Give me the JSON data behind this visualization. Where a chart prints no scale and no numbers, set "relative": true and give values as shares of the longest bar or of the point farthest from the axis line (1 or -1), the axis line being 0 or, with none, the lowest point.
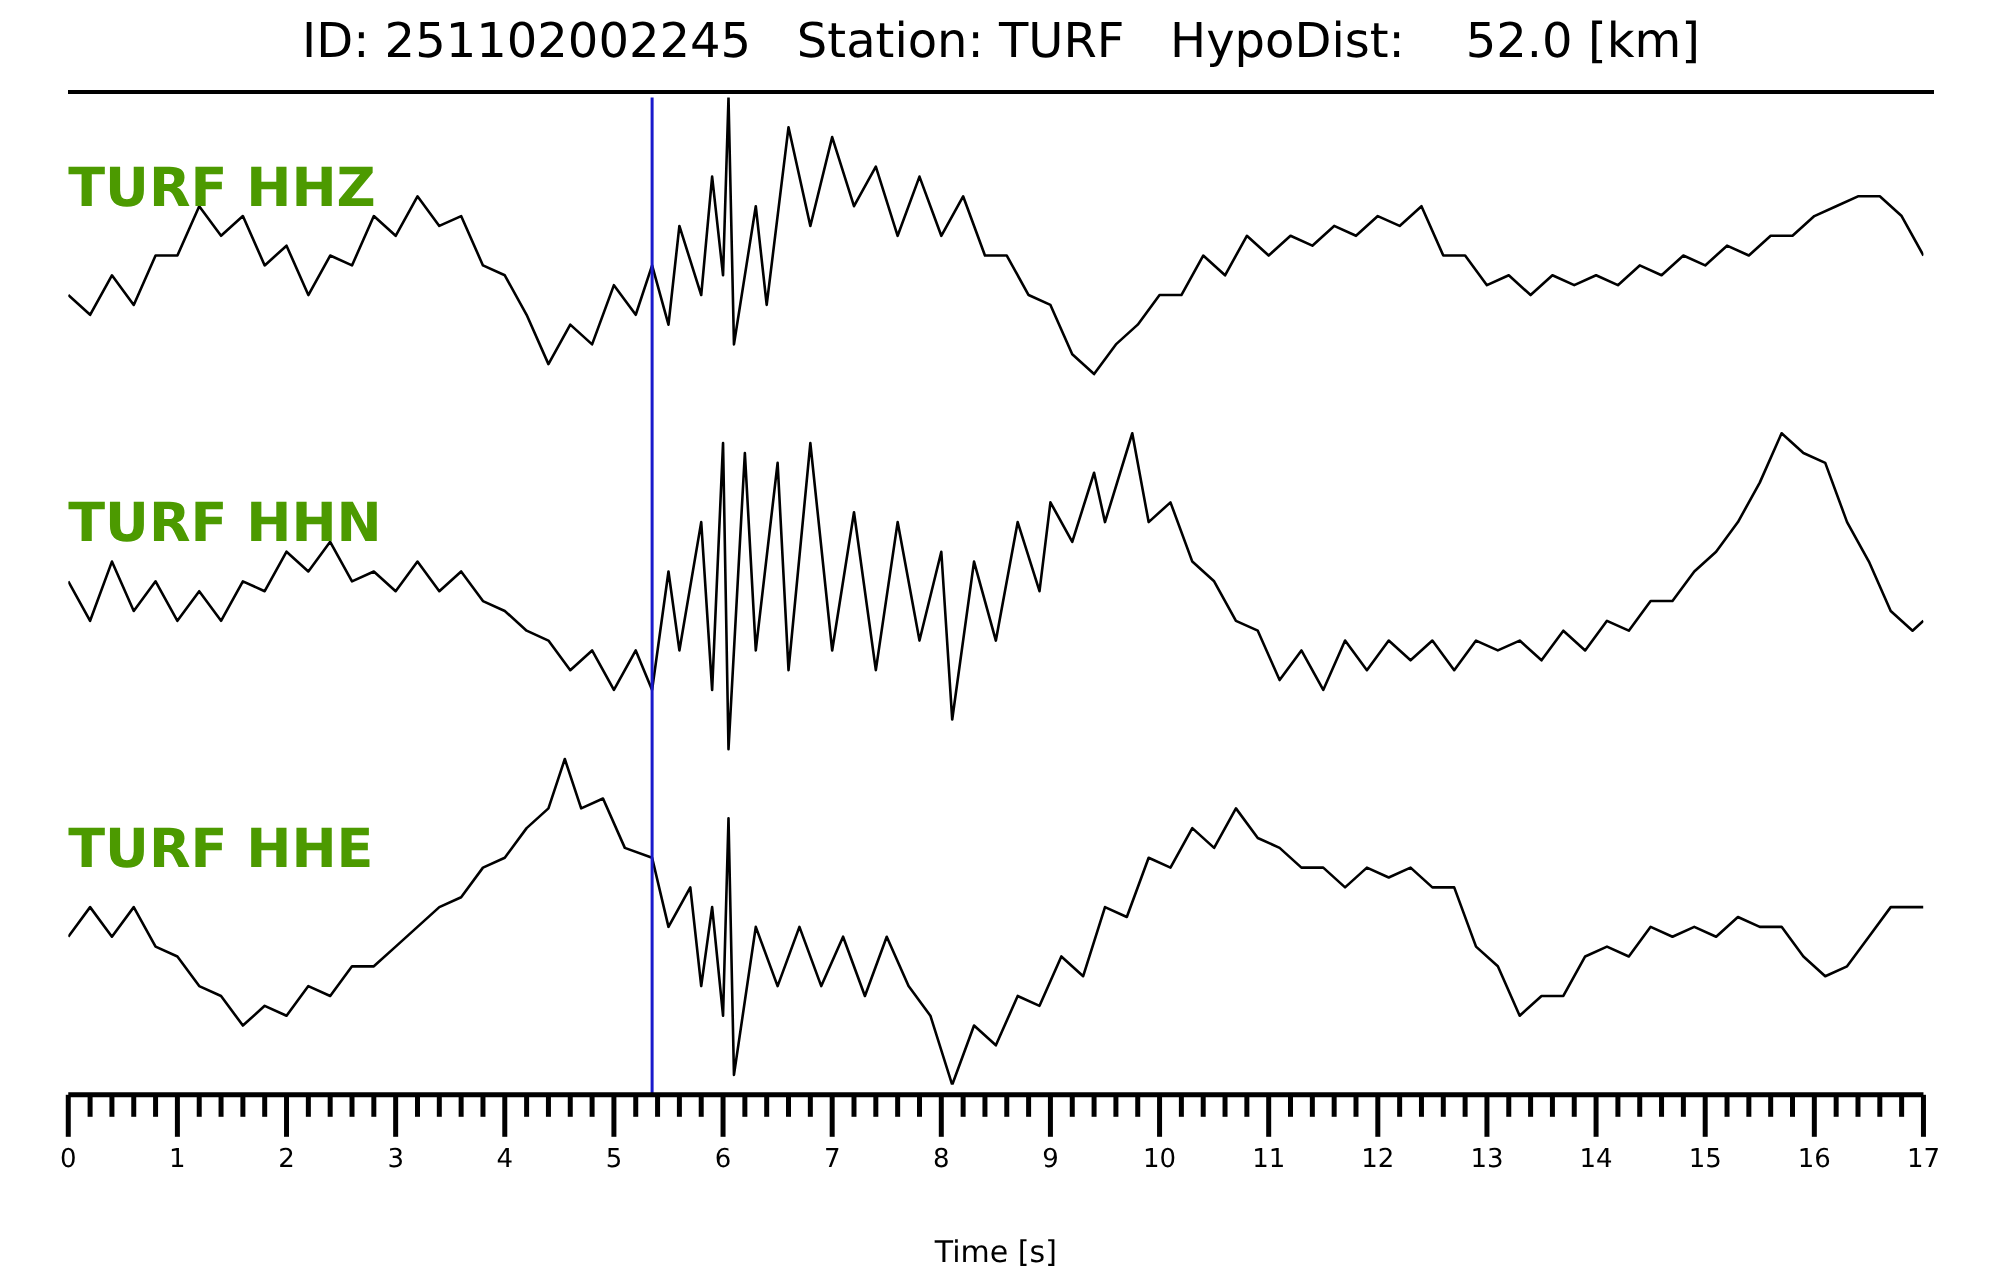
{
  "chart_data": {
    "type": "line",
    "title": "ID: 251102002245   Station: TURF   HypoDist:    52.0 [km]",
    "relative": true,
    "xlim": [
      0,
      17
    ],
    "xlabel": "Time [s]",
    "xticks": [
      0,
      {
        "value": 0.2,
        "label": null
      },
      {
        "value": 0.4,
        "label": null
      },
      {
        "value": 0.6,
        "label": null
      },
      {
        "value": 0.8,
        "label": null
      },
      1,
      {
        "value": 1.2,
        "label": null
      },
      {
        "value": 1.4,
        "label": null
      },
      {
        "value": 1.6,
        "label": null
      },
      {
        "value": 1.8,
        "label": null
      },
      2,
      {
        "value": 2.2,
        "label": null
      },
      {
        "value": 2.4,
        "label": null
      },
      {
        "value": 2.6,
        "label": null
      },
      {
        "value": 2.8,
        "label": null
      },
      3,
      {
        "value": 3.2,
        "label": null
      },
      {
        "value": 3.4,
        "label": null
      },
      {
        "value": 3.6,
        "label": null
      },
      {
        "value": 3.8,
        "label": null
      },
      4,
      {
        "value": 4.2,
        "label": null
      },
      {
        "value": 4.4,
        "label": null
      },
      {
        "value": 4.6,
        "label": null
      },
      {
        "value": 4.8,
        "label": null
      },
      5,
      {
        "value": 5.2,
        "label": null
      },
      {
        "value": 5.4,
        "label": null
      },
      {
        "value": 5.6,
        "label": null
      },
      {
        "value": 5.8,
        "label": null
      },
      6,
      {
        "value": 6.2,
        "label": null
      },
      {
        "value": 6.4,
        "label": null
      },
      {
        "value": 6.6,
        "label": null
      },
      {
        "value": 6.8,
        "label": null
      },
      7,
      {
        "value": 7.2,
        "label": null
      },
      {
        "value": 7.4,
        "label": null
      },
      {
        "value": 7.6,
        "label": null
      },
      {
        "value": 7.8,
        "label": null
      },
      8,
      {
        "value": 8.2,
        "label": null
      },
      {
        "value": 8.4,
        "label": null
      },
      {
        "value": 8.6,
        "label": null
      },
      {
        "value": 8.8,
        "label": null
      },
      9,
      {
        "value": 9.2,
        "label": null
      },
      {
        "value": 9.4,
        "label": null
      },
      {
        "value": 9.6,
        "label": null
      },
      {
        "value": 9.8,
        "label": null
      },
      10,
      {
        "value": 10.2,
        "label": null
      },
      {
        "value": 10.4,
        "label": null
      },
      {
        "value": 10.6,
        "label": null
      },
      {
        "value": 10.8,
        "label": null
      },
      11,
      {
        "value": 11.2,
        "label": null
      },
      {
        "value": 11.4,
        "label": null
      },
      {
        "value": 11.6,
        "label": null
      },
      {
        "value": 11.8,
        "label": null
      },
      12,
      {
        "value": 12.2,
        "label": null
      },
      {
        "value": 12.4,
        "label": null
      },
      {
        "value": 12.6,
        "label": null
      },
      {
        "value": 12.8,
        "label": null
      },
      13,
      {
        "value": 13.2,
        "label": null
      },
      {
        "value": 13.4,
        "label": null
      },
      {
        "value": 13.6,
        "label": null
      },
      {
        "value": 13.8,
        "label": null
      },
      14,
      {
        "value": 14.2,
        "label": null
      },
      {
        "value": 14.4,
        "label": null
      },
      {
        "value": 14.6,
        "label": null
      },
      {
        "value": 14.8,
        "label": null
      },
      15,
      {
        "value": 15.2,
        "label": null
      },
      {
        "value": 15.4,
        "label": null
      },
      {
        "value": 15.6,
        "label": null
      },
      {
        "value": 15.8,
        "label": null
      },
      16,
      {
        "value": 16.2,
        "label": null
      },
      {
        "value": 16.4,
        "label": null
      },
      {
        "value": 16.6,
        "label": null
      },
      {
        "value": 16.8,
        "label": null
      },
      17
    ],
    "series": [
      {
        "name": "TURF HHZ",
        "color": "#000000",
        "x": [
          0,
          0.2,
          0.4,
          0.6,
          0.8,
          1.0,
          1.2,
          1.4,
          1.6,
          1.8,
          2.0,
          2.2,
          2.4,
          2.6,
          2.8,
          3.0,
          3.2,
          3.4,
          3.6,
          3.8,
          4.0,
          4.2,
          4.4,
          4.6,
          4.8,
          5.0,
          5.2,
          5.35,
          5.5,
          5.6,
          5.8,
          5.9,
          6.0,
          6.05,
          6.1,
          6.3,
          6.4,
          6.6,
          6.8,
          7.0,
          7.2,
          7.4,
          7.6,
          7.8,
          8.0,
          8.2,
          8.4,
          8.6,
          8.8,
          9.0,
          9.2,
          9.4,
          9.6,
          9.8,
          10.0,
          10.2,
          10.4,
          10.6,
          10.8,
          11.0,
          11.2,
          11.4,
          11.6,
          11.8,
          12.0,
          12.2,
          12.4,
          12.6,
          12.8,
          13.0,
          13.2,
          13.4,
          13.6,
          13.8,
          14.0,
          14.2,
          14.4,
          14.6,
          14.8,
          15.0,
          15.2,
          15.4,
          15.6,
          15.8,
          16.0,
          16.2,
          16.4,
          16.6,
          16.8,
          17.0
        ],
        "values": [
          0.8,
          0.78,
          0.82,
          0.79,
          0.84,
          0.84,
          0.89,
          0.86,
          0.88,
          0.83,
          0.85,
          0.8,
          0.84,
          0.83,
          0.88,
          0.86,
          0.9,
          0.87,
          0.88,
          0.83,
          0.82,
          0.78,
          0.73,
          0.77,
          0.75,
          0.81,
          0.78,
          0.83,
          0.77,
          0.87,
          0.8,
          0.92,
          0.82,
          1.0,
          0.75,
          0.89,
          0.79,
          0.97,
          0.87,
          0.96,
          0.89,
          0.93,
          0.86,
          0.92,
          0.86,
          0.9,
          0.84,
          0.84,
          0.8,
          0.79,
          0.74,
          0.72,
          0.75,
          0.77,
          0.8,
          0.8,
          0.84,
          0.82,
          0.86,
          0.84,
          0.86,
          0.85,
          0.87,
          0.86,
          0.88,
          0.87,
          0.89,
          0.84,
          0.84,
          0.81,
          0.82,
          0.8,
          0.82,
          0.81,
          0.82,
          0.81,
          0.83,
          0.82,
          0.84,
          0.83,
          0.85,
          0.84,
          0.86,
          0.86,
          0.88,
          0.89,
          0.9,
          0.9,
          0.88,
          0.84
        ]
      },
      {
        "name": "TURF HHN",
        "color": "#000000",
        "x": [
          0,
          0.2,
          0.4,
          0.6,
          0.8,
          1.0,
          1.2,
          1.4,
          1.6,
          1.8,
          2.0,
          2.2,
          2.4,
          2.6,
          2.8,
          3.0,
          3.2,
          3.4,
          3.6,
          3.8,
          4.0,
          4.2,
          4.4,
          4.6,
          4.8,
          5.0,
          5.2,
          5.35,
          5.5,
          5.6,
          5.8,
          5.9,
          6.0,
          6.05,
          6.2,
          6.3,
          6.5,
          6.6,
          6.8,
          7.0,
          7.2,
          7.4,
          7.6,
          7.8,
          8.0,
          8.1,
          8.3,
          8.5,
          8.7,
          8.9,
          9.0,
          9.2,
          9.4,
          9.5,
          9.75,
          9.9,
          10.1,
          10.3,
          10.5,
          10.7,
          10.9,
          11.1,
          11.3,
          11.5,
          11.7,
          11.9,
          12.1,
          12.3,
          12.5,
          12.7,
          12.9,
          13.1,
          13.3,
          13.5,
          13.7,
          13.9,
          14.1,
          14.3,
          14.5,
          14.7,
          14.9,
          15.1,
          15.3,
          15.5,
          15.7,
          15.9,
          16.1,
          16.3,
          16.5,
          16.7,
          16.9,
          17.0
        ],
        "values": [
          0.51,
          0.47,
          0.53,
          0.48,
          0.51,
          0.47,
          0.5,
          0.47,
          0.51,
          0.5,
          0.54,
          0.52,
          0.55,
          0.51,
          0.52,
          0.5,
          0.53,
          0.5,
          0.52,
          0.49,
          0.48,
          0.46,
          0.45,
          0.42,
          0.44,
          0.4,
          0.44,
          0.4,
          0.52,
          0.44,
          0.57,
          0.4,
          0.65,
          0.34,
          0.64,
          0.44,
          0.63,
          0.42,
          0.65,
          0.44,
          0.58,
          0.42,
          0.57,
          0.45,
          0.54,
          0.37,
          0.53,
          0.45,
          0.57,
          0.5,
          0.59,
          0.55,
          0.62,
          0.57,
          0.66,
          0.57,
          0.59,
          0.53,
          0.51,
          0.47,
          0.46,
          0.41,
          0.44,
          0.4,
          0.45,
          0.42,
          0.45,
          0.43,
          0.45,
          0.42,
          0.45,
          0.44,
          0.45,
          0.43,
          0.46,
          0.44,
          0.47,
          0.46,
          0.49,
          0.49,
          0.52,
          0.54,
          0.57,
          0.61,
          0.66,
          0.64,
          0.63,
          0.57,
          0.53,
          0.48,
          0.46,
          0.47
        ]
      },
      {
        "name": "TURF HHE",
        "color": "#000000",
        "x": [
          0,
          0.2,
          0.4,
          0.6,
          0.8,
          1.0,
          1.2,
          1.4,
          1.6,
          1.8,
          2.0,
          2.2,
          2.4,
          2.6,
          2.8,
          3.0,
          3.2,
          3.4,
          3.6,
          3.8,
          4.0,
          4.2,
          4.4,
          4.55,
          4.7,
          4.9,
          5.1,
          5.35,
          5.5,
          5.7,
          5.8,
          5.9,
          6.0,
          6.05,
          6.1,
          6.3,
          6.5,
          6.7,
          6.9,
          7.1,
          7.3,
          7.5,
          7.7,
          7.9,
          8.1,
          8.3,
          8.5,
          8.7,
          8.9,
          9.1,
          9.3,
          9.5,
          9.7,
          9.9,
          10.1,
          10.3,
          10.5,
          10.7,
          10.9,
          11.1,
          11.3,
          11.5,
          11.7,
          11.9,
          12.1,
          12.3,
          12.5,
          12.7,
          12.9,
          13.1,
          13.3,
          13.5,
          13.7,
          13.9,
          14.1,
          14.3,
          14.5,
          14.7,
          14.9,
          15.1,
          15.3,
          15.5,
          15.7,
          15.9,
          16.1,
          16.3,
          16.5,
          16.7,
          16.9,
          17.0
        ],
        "values": [
          0.15,
          0.18,
          0.15,
          0.18,
          0.14,
          0.13,
          0.1,
          0.09,
          0.06,
          0.08,
          0.07,
          0.1,
          0.09,
          0.12,
          0.12,
          0.14,
          0.16,
          0.18,
          0.19,
          0.22,
          0.23,
          0.26,
          0.28,
          0.33,
          0.28,
          0.29,
          0.24,
          0.23,
          0.16,
          0.2,
          0.1,
          0.18,
          0.07,
          0.27,
          0.01,
          0.16,
          0.1,
          0.16,
          0.1,
          0.15,
          0.09,
          0.15,
          0.1,
          0.07,
          0.0,
          0.06,
          0.04,
          0.09,
          0.08,
          0.13,
          0.11,
          0.18,
          0.17,
          0.23,
          0.22,
          0.26,
          0.24,
          0.28,
          0.25,
          0.24,
          0.22,
          0.22,
          0.2,
          0.22,
          0.21,
          0.22,
          0.2,
          0.2,
          0.14,
          0.12,
          0.07,
          0.09,
          0.09,
          0.13,
          0.14,
          0.13,
          0.16,
          0.15,
          0.16,
          0.15,
          0.17,
          0.16,
          0.16,
          0.13,
          0.11,
          0.12,
          0.15,
          0.18,
          0.18,
          0.18
        ]
      }
    ],
    "ref_lines": [
      {
        "axis": "x",
        "value": 5.35,
        "color": "#1a1acc"
      }
    ]
  }
}
